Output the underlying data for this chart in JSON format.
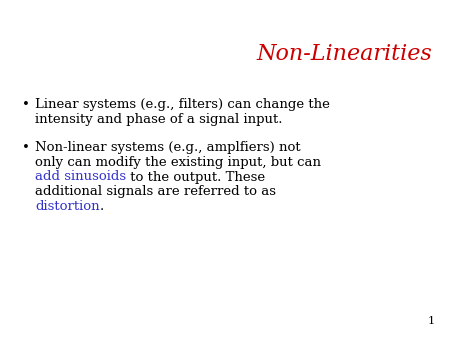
{
  "title": "Non-Linearities",
  "title_color": "#cc0000",
  "background_color": "#ffffff",
  "page_number": "1",
  "text_color": "#000000",
  "highlight_color_blue": "#3333cc",
  "title_fontsize": 16,
  "body_fontsize": 9.5,
  "bullet_fontsize": 9.5,
  "page_num_fontsize": 8,
  "bullet1_line1": "Linear systems (e.g., filters) can change the",
  "bullet1_line2": "intensity and phase of a signal input.",
  "b2_line1": "Non-linear systems (e.g., amplfiers) not",
  "b2_line2": "only can modify the existing input, but can",
  "b2_line3_blue": "add sinusoids",
  "b2_line3_black": " to the output. These",
  "b2_line4": "additional signals are referred to as",
  "b2_line5_blue": "distortion",
  "b2_line5_black": "."
}
